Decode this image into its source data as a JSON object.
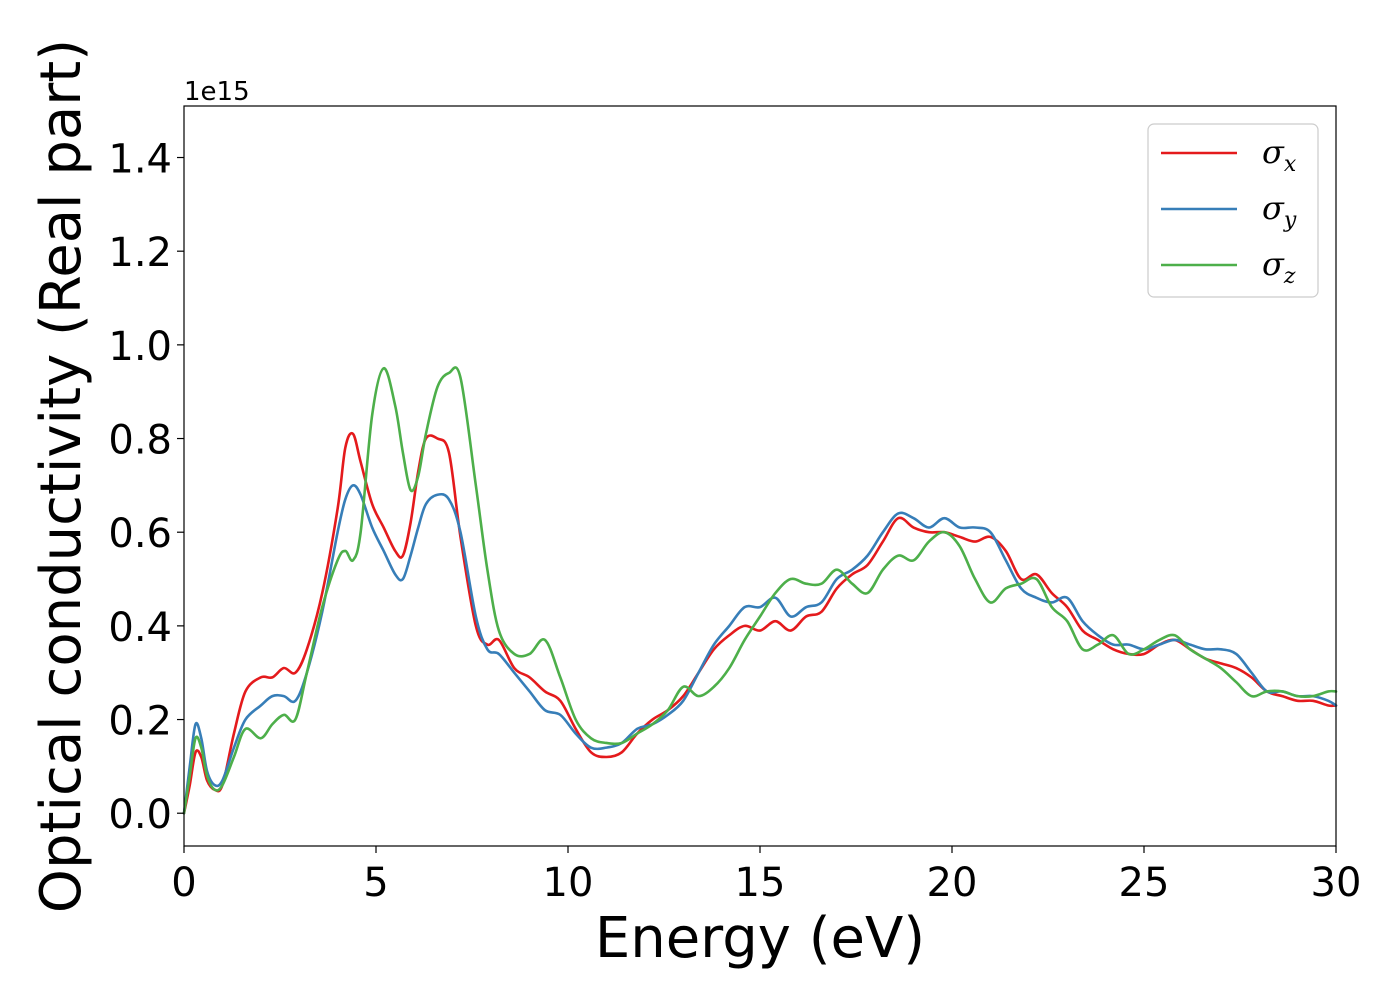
{
  "chart_data": {
    "type": "line",
    "title": "",
    "xlabel": "Energy (eV)",
    "ylabel": "Optical conductivity (Real part)",
    "y_offset_label": "1e15",
    "xlim": [
      0,
      30
    ],
    "ylim": [
      -0.07,
      1.51
    ],
    "xticks": [
      0,
      5,
      10,
      15,
      20,
      25,
      30
    ],
    "xtick_labels": [
      "0",
      "5",
      "10",
      "15",
      "20",
      "25",
      "30"
    ],
    "yticks": [
      0.0,
      0.2,
      0.4,
      0.6,
      0.8,
      1.0,
      1.2,
      1.4
    ],
    "ytick_labels": [
      "0.0",
      "0.2",
      "0.4",
      "0.6",
      "0.8",
      "1.0",
      "1.2",
      "1.4"
    ],
    "grid": false,
    "legend_position": "top-right",
    "series": [
      {
        "name": "σx",
        "symbol": "σ",
        "subscript": "x",
        "color": "#e41a1c",
        "x": [
          0,
          0.15,
          0.3,
          0.45,
          0.6,
          0.8,
          1.0,
          1.3,
          1.6,
          2.0,
          2.3,
          2.6,
          2.9,
          3.2,
          3.6,
          4.0,
          4.2,
          4.4,
          4.6,
          4.9,
          5.2,
          5.5,
          5.7,
          5.9,
          6.1,
          6.3,
          6.6,
          6.9,
          7.2,
          7.6,
          7.9,
          8.2,
          8.6,
          9.0,
          9.4,
          9.8,
          10.2,
          10.6,
          11.0,
          11.4,
          11.8,
          12.2,
          12.6,
          13.0,
          13.4,
          13.8,
          14.2,
          14.6,
          15.0,
          15.4,
          15.8,
          16.2,
          16.6,
          17.0,
          17.4,
          17.8,
          18.2,
          18.6,
          19.0,
          19.4,
          19.8,
          20.2,
          20.6,
          21.0,
          21.4,
          21.8,
          22.2,
          22.6,
          23.0,
          23.4,
          23.8,
          24.2,
          24.6,
          25.0,
          25.4,
          25.8,
          26.2,
          26.6,
          27.0,
          27.4,
          27.8,
          28.2,
          28.6,
          29.0,
          29.4,
          29.8,
          30.0
        ],
        "y": [
          0.0,
          0.06,
          0.13,
          0.12,
          0.07,
          0.05,
          0.06,
          0.17,
          0.26,
          0.29,
          0.29,
          0.31,
          0.3,
          0.35,
          0.47,
          0.65,
          0.78,
          0.81,
          0.75,
          0.66,
          0.61,
          0.56,
          0.55,
          0.62,
          0.73,
          0.8,
          0.8,
          0.77,
          0.59,
          0.4,
          0.36,
          0.37,
          0.31,
          0.29,
          0.26,
          0.24,
          0.18,
          0.13,
          0.12,
          0.13,
          0.17,
          0.2,
          0.22,
          0.25,
          0.3,
          0.35,
          0.38,
          0.4,
          0.39,
          0.41,
          0.39,
          0.42,
          0.43,
          0.48,
          0.51,
          0.53,
          0.58,
          0.63,
          0.61,
          0.6,
          0.6,
          0.59,
          0.58,
          0.59,
          0.56,
          0.5,
          0.51,
          0.47,
          0.44,
          0.39,
          0.37,
          0.35,
          0.34,
          0.34,
          0.36,
          0.37,
          0.35,
          0.33,
          0.32,
          0.31,
          0.29,
          0.26,
          0.25,
          0.24,
          0.24,
          0.23,
          0.23
        ]
      },
      {
        "name": "σy",
        "symbol": "σ",
        "subscript": "y",
        "color": "#377eb8",
        "x": [
          0,
          0.15,
          0.3,
          0.45,
          0.6,
          0.8,
          1.0,
          1.3,
          1.6,
          2.0,
          2.3,
          2.6,
          2.9,
          3.2,
          3.6,
          4.0,
          4.2,
          4.4,
          4.6,
          4.9,
          5.2,
          5.5,
          5.7,
          5.9,
          6.1,
          6.3,
          6.6,
          6.9,
          7.2,
          7.6,
          7.9,
          8.2,
          8.6,
          9.0,
          9.4,
          9.8,
          10.2,
          10.6,
          11.0,
          11.4,
          11.8,
          12.2,
          12.6,
          13.0,
          13.4,
          13.8,
          14.2,
          14.6,
          15.0,
          15.4,
          15.8,
          16.2,
          16.6,
          17.0,
          17.4,
          17.8,
          18.2,
          18.6,
          19.0,
          19.4,
          19.8,
          20.2,
          20.6,
          21.0,
          21.4,
          21.8,
          22.2,
          22.6,
          23.0,
          23.4,
          23.8,
          24.2,
          24.6,
          25.0,
          25.4,
          25.8,
          26.2,
          26.6,
          27.0,
          27.4,
          27.8,
          28.2,
          28.6,
          29.0,
          29.4,
          29.8,
          30.0
        ],
        "y": [
          0.0,
          0.1,
          0.19,
          0.16,
          0.09,
          0.06,
          0.07,
          0.14,
          0.2,
          0.23,
          0.25,
          0.25,
          0.24,
          0.3,
          0.43,
          0.6,
          0.67,
          0.7,
          0.68,
          0.61,
          0.56,
          0.51,
          0.5,
          0.55,
          0.61,
          0.66,
          0.68,
          0.67,
          0.6,
          0.42,
          0.35,
          0.34,
          0.3,
          0.26,
          0.22,
          0.21,
          0.17,
          0.14,
          0.14,
          0.15,
          0.18,
          0.19,
          0.21,
          0.24,
          0.3,
          0.36,
          0.4,
          0.44,
          0.44,
          0.46,
          0.42,
          0.44,
          0.45,
          0.5,
          0.52,
          0.55,
          0.6,
          0.64,
          0.63,
          0.61,
          0.63,
          0.61,
          0.61,
          0.6,
          0.54,
          0.48,
          0.46,
          0.45,
          0.46,
          0.41,
          0.38,
          0.36,
          0.36,
          0.35,
          0.36,
          0.37,
          0.36,
          0.35,
          0.35,
          0.34,
          0.3,
          0.26,
          0.26,
          0.25,
          0.25,
          0.24,
          0.23
        ]
      },
      {
        "name": "σz",
        "symbol": "σ",
        "subscript": "z",
        "color": "#4daf4a",
        "x": [
          0,
          0.15,
          0.3,
          0.45,
          0.6,
          0.8,
          1.0,
          1.3,
          1.6,
          2.0,
          2.3,
          2.6,
          2.9,
          3.2,
          3.6,
          4.0,
          4.2,
          4.4,
          4.6,
          4.9,
          5.2,
          5.5,
          5.7,
          5.9,
          6.1,
          6.3,
          6.6,
          6.9,
          7.2,
          7.6,
          7.9,
          8.2,
          8.6,
          9.0,
          9.4,
          9.8,
          10.2,
          10.6,
          11.0,
          11.4,
          11.8,
          12.2,
          12.6,
          13.0,
          13.4,
          13.8,
          14.2,
          14.6,
          15.0,
          15.4,
          15.8,
          16.2,
          16.6,
          17.0,
          17.4,
          17.8,
          18.2,
          18.6,
          19.0,
          19.4,
          19.8,
          20.2,
          20.6,
          21.0,
          21.4,
          21.8,
          22.2,
          22.6,
          23.0,
          23.4,
          23.8,
          24.2,
          24.6,
          25.0,
          25.4,
          25.8,
          26.2,
          26.6,
          27.0,
          27.4,
          27.8,
          28.2,
          28.6,
          29.0,
          29.4,
          29.8,
          30.0
        ],
        "y": [
          0.0,
          0.08,
          0.16,
          0.14,
          0.08,
          0.05,
          0.06,
          0.12,
          0.18,
          0.16,
          0.19,
          0.21,
          0.2,
          0.3,
          0.44,
          0.54,
          0.56,
          0.54,
          0.6,
          0.85,
          0.95,
          0.87,
          0.77,
          0.69,
          0.72,
          0.81,
          0.91,
          0.94,
          0.93,
          0.7,
          0.52,
          0.39,
          0.34,
          0.34,
          0.37,
          0.29,
          0.2,
          0.16,
          0.15,
          0.15,
          0.17,
          0.19,
          0.22,
          0.27,
          0.25,
          0.27,
          0.31,
          0.37,
          0.42,
          0.47,
          0.5,
          0.49,
          0.49,
          0.52,
          0.49,
          0.47,
          0.52,
          0.55,
          0.54,
          0.58,
          0.6,
          0.57,
          0.5,
          0.45,
          0.48,
          0.49,
          0.5,
          0.44,
          0.41,
          0.35,
          0.36,
          0.38,
          0.34,
          0.35,
          0.37,
          0.38,
          0.35,
          0.33,
          0.31,
          0.28,
          0.25,
          0.26,
          0.26,
          0.25,
          0.25,
          0.26,
          0.26
        ]
      }
    ]
  }
}
